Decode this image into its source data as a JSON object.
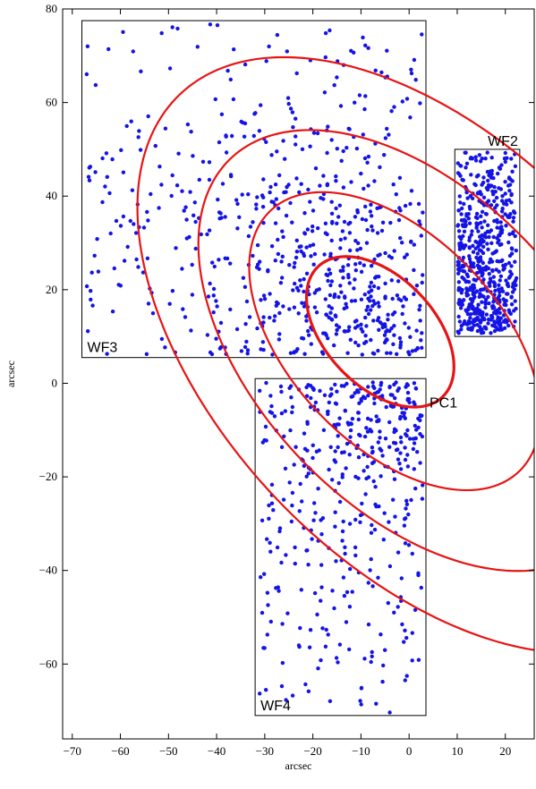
{
  "chart_data": {
    "type": "scatter",
    "xlabel": "arcsec",
    "ylabel": "arcsec",
    "xlim": [
      -72,
      26
    ],
    "ylim": [
      -76,
      80
    ],
    "x_ticks": [
      -70,
      -60,
      -50,
      -40,
      -30,
      -20,
      -10,
      0,
      10,
      20
    ],
    "y_ticks": [
      -60,
      -40,
      -20,
      0,
      20,
      40,
      60,
      80
    ],
    "x_tick_labels": [
      "−70",
      "−60",
      "−50",
      "−40",
      "−30",
      "−20",
      "−10",
      "0",
      "10",
      "20"
    ],
    "y_tick_labels": [
      "−60",
      "−40",
      "−20",
      "0",
      "20",
      "40",
      "60",
      "80"
    ],
    "grid": false,
    "colors": {
      "points": "#1414e6",
      "ellipses": "#e61414",
      "frames": "#000000"
    },
    "regions": [
      {
        "name": "WF3",
        "x": [
          -68,
          3.5
        ],
        "y": [
          5.5,
          77.5
        ]
      },
      {
        "name": "WF2",
        "x": [
          9.5,
          23
        ],
        "y": [
          10,
          50
        ]
      },
      {
        "name": "WF4",
        "x": [
          -32,
          3.5
        ],
        "y": [
          -71,
          1
        ]
      },
      {
        "name": "PC1",
        "x": [
          3.5,
          9.5
        ],
        "y": [
          -5,
          1
        ]
      }
    ],
    "region_label_names": [
      "WF3",
      "WF2",
      "WF4",
      "PC1"
    ],
    "ellipses": [
      {
        "center": [
          -6,
          11
        ],
        "semi_major": 19,
        "semi_minor": 11.5,
        "angle_deg": -48
      },
      {
        "center": [
          -3,
          9
        ],
        "semi_major": 38,
        "semi_minor": 22,
        "angle_deg": -48
      },
      {
        "center": [
          1,
          7
        ],
        "semi_major": 56,
        "semi_minor": 33,
        "angle_deg": -48
      },
      {
        "center": [
          4,
          6
        ],
        "semi_major": 76,
        "semi_minor": 44,
        "angle_deg": -48
      }
    ],
    "series": [
      {
        "type": "scatter",
        "distribution": "points concentrated toward (-8, 15), dense in the overlap with the inner ellipses, sparse near the outer ellipse",
        "point_count_approx": 1700
      }
    ]
  }
}
